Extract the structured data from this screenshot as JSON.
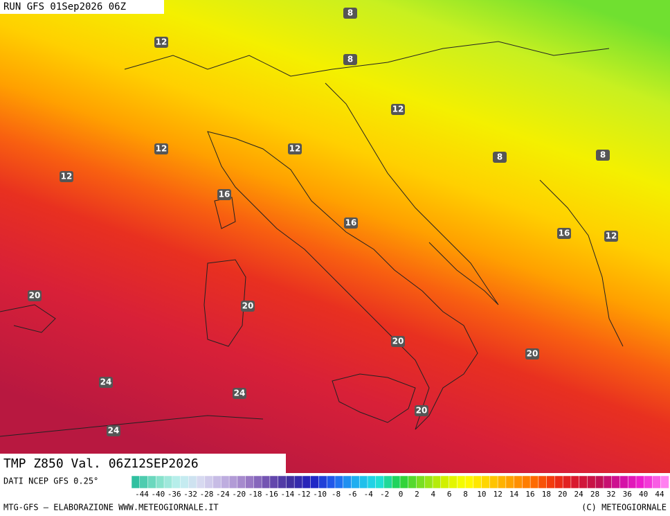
{
  "header": {
    "run": "RUN GFS 01Sep2026 06Z"
  },
  "title": "TMP Z850 Val. 06Z12SEP2026",
  "contour_labels": [
    "8",
    "12",
    "8",
    "12",
    "12",
    "12",
    "8",
    "8",
    "12",
    "16",
    "16",
    "16",
    "12",
    "20",
    "20",
    "20",
    "20",
    "24",
    "24",
    "20",
    "24"
  ],
  "source": "DATI NCEP GFS 0.25°",
  "colorbar": {
    "labels": [
      "-44",
      "-40",
      "-36",
      "-32",
      "-28",
      "-24",
      "-20",
      "-18",
      "-16",
      "-14",
      "-12",
      "-10",
      "-8",
      "-6",
      "-4",
      "-2",
      "0",
      "2",
      "4",
      "6",
      "8",
      "10",
      "12",
      "14",
      "16",
      "18",
      "20",
      "24",
      "28",
      "32",
      "36",
      "40",
      "44"
    ]
  },
  "footer": {
    "left": "MTG-GFS — ELABORAZIONE WWW.METEOGIORNALE.IT",
    "right": "(C) METEOGIORNALE"
  }
}
